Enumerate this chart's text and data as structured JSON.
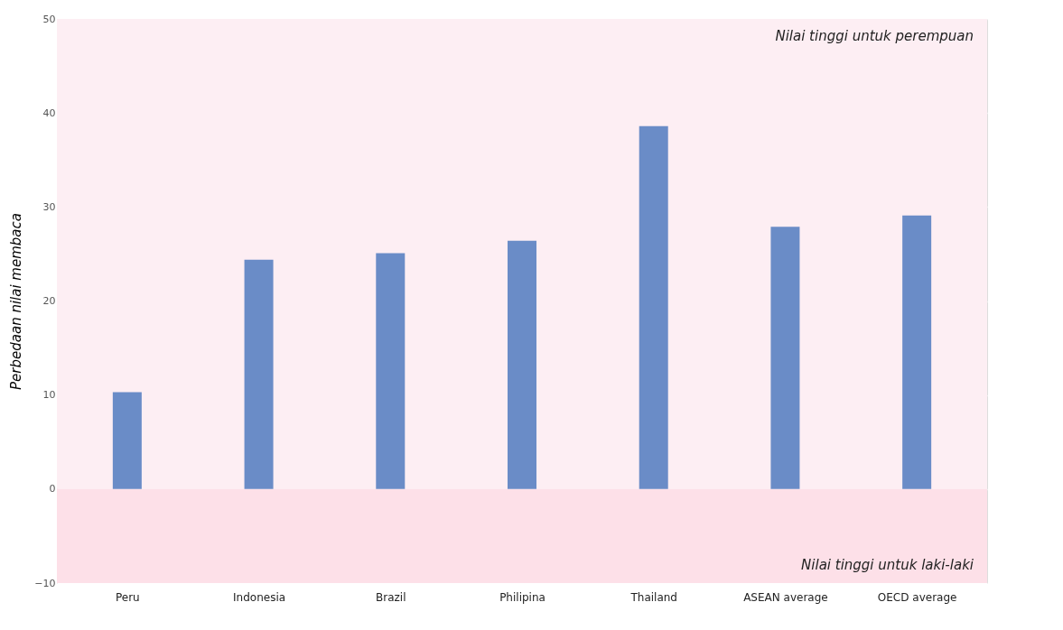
{
  "chart_data": {
    "type": "bar",
    "ylabel": "Perbedaan nilai membaca",
    "categories": [
      "Peru",
      "Indonesia",
      "Brazil",
      "Philipina",
      "Thailand",
      "ASEAN average",
      "OECD average"
    ],
    "series": [
      {
        "color": "#6a8cc7",
        "values": [
          10.3,
          24.4,
          25.1,
          26.4,
          38.6,
          27.9,
          29.1
        ]
      }
    ],
    "ylim": [
      -10,
      50
    ],
    "yticks": [
      -10,
      0,
      10,
      20,
      30,
      40,
      50
    ],
    "grid": "y",
    "bands": [
      {
        "axis": "y",
        "from": 0,
        "to": 50,
        "label": "Nilai tinggi untuk perempuan",
        "color": "#fdeef3"
      },
      {
        "axis": "y",
        "from": -10,
        "to": 0,
        "label": "Nilai tinggi untuk laki-laki",
        "color": "#fde0e8"
      }
    ]
  }
}
